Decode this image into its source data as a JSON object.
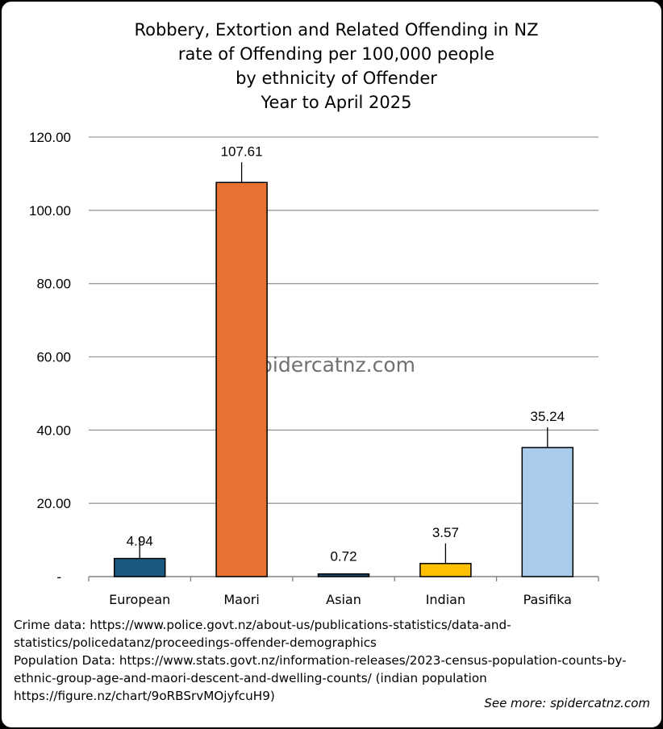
{
  "chart_data": {
    "type": "bar",
    "title_lines": [
      "Robbery, Extortion and Related Offending in NZ",
      "rate of Offending per 100,000 people",
      "by ethnicity of Offender",
      "Year to April 2025"
    ],
    "categories": [
      "European",
      "Maori",
      "Asian",
      "Indian",
      "Pasifika"
    ],
    "values": [
      4.94,
      107.61,
      0.72,
      3.57,
      35.24
    ],
    "value_labels": [
      "4.94",
      "107.61",
      "0.72",
      "3.57",
      "35.24"
    ],
    "colors": [
      "#1a5a80",
      "#e87232",
      "#1f4e79",
      "#ffc000",
      "#a9cbec"
    ],
    "ylim": [
      0,
      120
    ],
    "yticks": [
      0,
      20,
      40,
      60,
      80,
      100,
      120
    ],
    "ytick_labels": [
      "-",
      "20.00",
      "40.00",
      "60.00",
      "80.00",
      "100.00",
      "120.00"
    ],
    "grid": true,
    "xlabel": "",
    "ylabel": "",
    "watermark": "spidercatnz.com"
  },
  "sources": {
    "lines": [
      "Crime data: https://www.police.govt.nz/about-us/publications-statistics/data-and-",
      "statistics/policedatanz/proceedings-offender-demographics",
      "Population Data: https://www.stats.govt.nz/information-releases/2023-census-population-counts-by-",
      "ethnic-group-age-and-maori-descent-and-dwelling-counts/ (indian population",
      "https://figure.nz/chart/9oRBSrvMOjyfcuH9)"
    ],
    "see_more": "See more: spidercatnz.com"
  }
}
